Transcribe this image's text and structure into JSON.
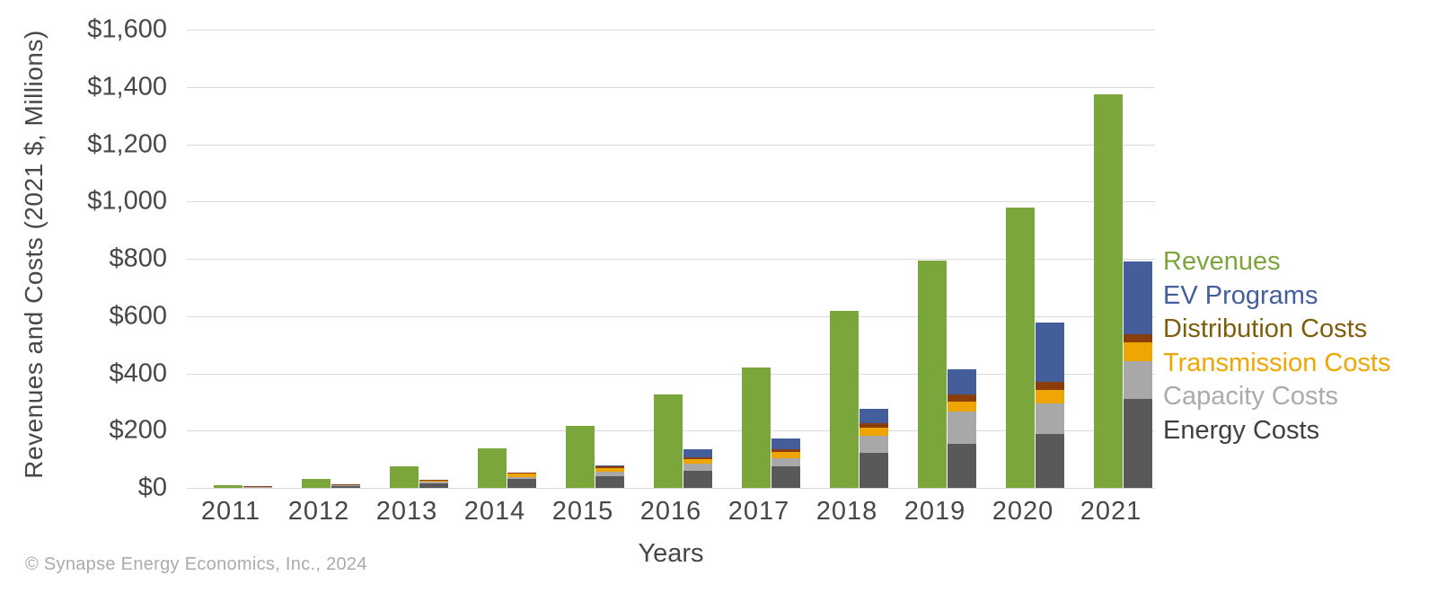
{
  "y_axis": {
    "title": "Revenues and Costs (2021 $, Millions)",
    "tick_labels": [
      "$0",
      "$200",
      "$400",
      "$600",
      "$800",
      "$1,000",
      "$1,200",
      "$1,400",
      "$1,600"
    ],
    "max": 1600,
    "step": 200
  },
  "x_axis": {
    "title": "Years"
  },
  "footer": {
    "copyright": "© Synapse Energy Economics, Inc., 2024"
  },
  "colors": {
    "revenues": "#7ba63c",
    "ev_programs": "#445e9c",
    "distribution_bar": "#8a3e0b",
    "distribution_text": "#7f5e0b",
    "transmission": "#f0a602",
    "capacity": "#a8a8a8",
    "energy_bar": "#595959",
    "energy_text": "#404040",
    "gridline": "#d9d9d9"
  },
  "legend": [
    {
      "label": "Revenues",
      "color": "#7ba63c"
    },
    {
      "label": "EV Programs",
      "color": "#445e9c"
    },
    {
      "label": "Distribution Costs",
      "color": "#7f5e0b"
    },
    {
      "label": "Transmission Costs",
      "color": "#f0a602"
    },
    {
      "label": "Capacity Costs",
      "color": "#ababab"
    },
    {
      "label": "Energy Costs",
      "color": "#404040"
    }
  ],
  "chart_data": {
    "type": "bar",
    "subtype": "grouped-revenue-bar-plus-stacked-cost-bar",
    "title": "",
    "xlabel": "Years",
    "ylabel": "Revenues and Costs (2021 $, Millions)",
    "ylim": [
      0,
      1600
    ],
    "grid": "horizontal",
    "legend_position": "right",
    "categories": [
      "2011",
      "2012",
      "2013",
      "2014",
      "2015",
      "2016",
      "2017",
      "2018",
      "2019",
      "2020",
      "2021"
    ],
    "series": [
      {
        "name": "Revenues",
        "role": "standalone",
        "color": "#7ba63c",
        "values": [
          10,
          30,
          75,
          137,
          218,
          326,
          420,
          617,
          793,
          980,
          1375
        ]
      },
      {
        "name": "Energy Costs",
        "role": "stack-0",
        "color": "#595959",
        "values": [
          3,
          8,
          17,
          32,
          40,
          59,
          75,
          122,
          155,
          188,
          311
        ]
      },
      {
        "name": "Capacity Costs",
        "role": "stack-1",
        "color": "#a8a8a8",
        "values": [
          1,
          2,
          4,
          7,
          16,
          25,
          30,
          60,
          112,
          107,
          132
        ]
      },
      {
        "name": "Transmission Costs",
        "role": "stack-2",
        "color": "#f0a602",
        "values": [
          2,
          3,
          5,
          10,
          12,
          15,
          20,
          29,
          34,
          48,
          65
        ]
      },
      {
        "name": "Distribution Costs",
        "role": "stack-3",
        "color": "#8a3e0b",
        "values": [
          1,
          1,
          2,
          4,
          8,
          9,
          11,
          16,
          25,
          28,
          27
        ]
      },
      {
        "name": "EV Programs",
        "role": "stack-4",
        "color": "#445e9c",
        "values": [
          0,
          0,
          0,
          0,
          4,
          27,
          38,
          48,
          87,
          206,
          257
        ]
      }
    ]
  }
}
